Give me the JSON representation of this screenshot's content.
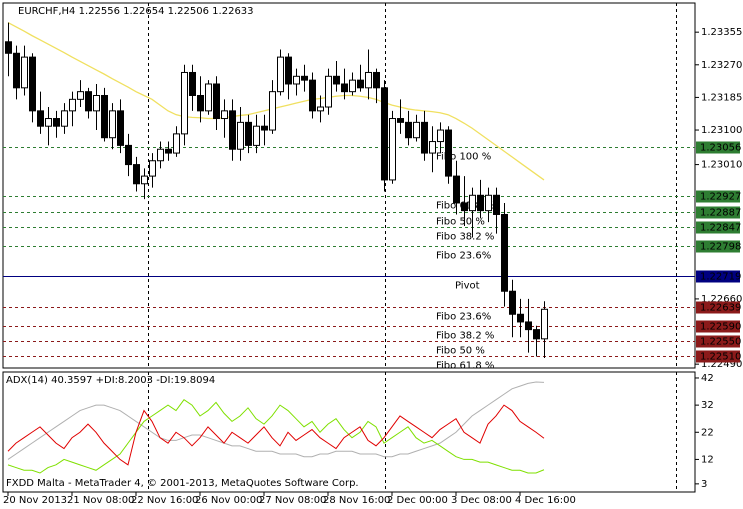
{
  "chart_data": [
    {
      "type": "candlestick",
      "title": "EURCHF,H4  1.22556 1.22654 1.22506 1.22633",
      "categories": [
        "20 Nov 2013",
        null,
        null,
        null,
        null,
        null,
        null,
        null,
        "21 Nov 08:00",
        null,
        null,
        null,
        null,
        null,
        null,
        null,
        "22 Nov 16:00",
        null,
        null,
        null,
        null,
        null,
        null,
        null,
        "26 Nov 00:00",
        null,
        null,
        null,
        null,
        null,
        null,
        null,
        "27 Nov 08:00",
        null,
        null,
        null,
        null,
        null,
        null,
        null,
        "28 Nov 16:00",
        null,
        null,
        null,
        null,
        null,
        null,
        null,
        "2 Dec 00:00",
        null,
        null,
        null,
        null,
        null,
        null,
        null,
        "3 Dec 08:00",
        null,
        null,
        null,
        null,
        null,
        null,
        null,
        "4 Dec 16:00",
        null,
        null,
        null
      ],
      "open": [
        1.2333,
        1.233,
        1.2321,
        1.2329,
        1.2315,
        1.2311,
        1.2313,
        1.2311,
        1.2315,
        1.2318,
        1.232,
        1.2315,
        1.2319,
        1.2308,
        1.2315,
        1.2306,
        1.2301,
        1.2296,
        1.2298,
        1.2302,
        1.2305,
        1.2304,
        1.2309,
        1.2325,
        1.2319,
        1.2315,
        1.2322,
        1.2313,
        1.2315,
        1.2305,
        1.2312,
        1.2306,
        1.2311,
        1.231,
        1.232,
        1.2329,
        1.2322,
        1.2324,
        1.2323,
        1.2315,
        1.2316,
        1.2324,
        1.2322,
        1.232,
        1.2323,
        1.2321,
        1.2325,
        1.2321,
        1.2297,
        1.2313,
        1.2312,
        1.2308,
        1.2312,
        1.2304,
        1.2307,
        1.231,
        1.2298,
        1.2291,
        1.2289,
        1.2293,
        1.2289,
        1.2293,
        1.2288,
        1.2268,
        1.2262,
        1.226,
        1.2258,
        1.22556
      ],
      "high": [
        1.2338,
        1.2332,
        1.2332,
        1.233,
        1.232,
        1.2316,
        1.2315,
        1.2317,
        1.232,
        1.2323,
        1.2321,
        1.2322,
        1.2321,
        1.2317,
        1.2318,
        1.2309,
        1.2303,
        1.23,
        1.2304,
        1.2307,
        1.2307,
        1.2311,
        1.2327,
        1.2327,
        1.2324,
        1.2323,
        1.2324,
        1.2318,
        1.2318,
        1.2316,
        1.2314,
        1.2314,
        1.2314,
        1.2323,
        1.2331,
        1.233,
        1.2326,
        1.2327,
        1.2325,
        1.2319,
        1.2326,
        1.2328,
        1.2326,
        1.2325,
        1.2327,
        1.2331,
        1.2326,
        1.2323,
        1.2315,
        1.2318,
        1.2315,
        1.2314,
        1.2315,
        1.2311,
        1.2312,
        1.2311,
        1.2302,
        1.2298,
        1.2295,
        1.2297,
        1.2295,
        1.2295,
        1.2291,
        1.2271,
        1.2266,
        1.2266,
        1.2259,
        1.22654
      ],
      "low": [
        1.2324,
        1.2318,
        1.2319,
        1.2312,
        1.2309,
        1.2306,
        1.2308,
        1.2309,
        1.2311,
        1.2316,
        1.2313,
        1.231,
        1.2307,
        1.2305,
        1.2304,
        1.2298,
        1.2294,
        1.2292,
        1.2295,
        1.23,
        1.2302,
        1.2303,
        1.2306,
        1.2315,
        1.2312,
        1.2314,
        1.231,
        1.2308,
        1.2302,
        1.2302,
        1.2304,
        1.2304,
        1.2306,
        1.2309,
        1.2319,
        1.2318,
        1.2319,
        1.232,
        1.2313,
        1.2312,
        1.2314,
        1.232,
        1.2318,
        1.2319,
        1.232,
        1.2318,
        1.2317,
        1.2294,
        1.2296,
        1.2309,
        1.2306,
        1.2307,
        1.2302,
        1.2299,
        1.2304,
        1.2296,
        1.2288,
        1.2285,
        1.2282,
        1.2287,
        1.2286,
        1.2283,
        1.2264,
        1.2256,
        1.2256,
        1.2252,
        1.2251,
        1.22506
      ],
      "close": [
        1.233,
        1.2321,
        1.2329,
        1.2315,
        1.2311,
        1.2313,
        1.2311,
        1.2315,
        1.2318,
        1.232,
        1.2315,
        1.2319,
        1.2308,
        1.2315,
        1.2306,
        1.2301,
        1.2296,
        1.2298,
        1.2302,
        1.2305,
        1.2304,
        1.2309,
        1.2325,
        1.2319,
        1.2315,
        1.2322,
        1.2313,
        1.2315,
        1.2305,
        1.2312,
        1.2306,
        1.2311,
        1.231,
        1.232,
        1.2329,
        1.2322,
        1.2324,
        1.2323,
        1.2315,
        1.2316,
        1.2324,
        1.2322,
        1.232,
        1.2323,
        1.2321,
        1.2325,
        1.2321,
        1.2297,
        1.2313,
        1.2312,
        1.2308,
        1.2312,
        1.2304,
        1.2307,
        1.231,
        1.2298,
        1.2291,
        1.2289,
        1.2293,
        1.2289,
        1.2293,
        1.2288,
        1.2268,
        1.2262,
        1.226,
        1.2258,
        1.22556,
        1.22633
      ],
      "up_color": "#ffffff",
      "down_color": "#000000",
      "color": "#000000",
      "ma": {
        "color": "#f0e060",
        "values": [
          1.2338,
          1.23369,
          1.23358,
          1.23346,
          1.23335,
          1.23324,
          1.23313,
          1.23302,
          1.2329,
          1.23279,
          1.23268,
          1.23257,
          1.23246,
          1.23234,
          1.23223,
          1.23212,
          1.232,
          1.2319,
          1.2318,
          1.23165,
          1.2315,
          1.2314,
          1.23135,
          1.23133,
          1.23132,
          1.2313,
          1.2313,
          1.23132,
          1.23135,
          1.23138,
          1.2314,
          1.23145,
          1.2315,
          1.23155,
          1.2316,
          1.23165,
          1.2317,
          1.23175,
          1.2318,
          1.23182,
          1.23185,
          1.23188,
          1.2319,
          1.2319,
          1.23188,
          1.23185,
          1.2318,
          1.23172,
          1.23165,
          1.2316,
          1.23155,
          1.23152,
          1.2315,
          1.23148,
          1.23145,
          1.2314,
          1.2313,
          1.23118,
          1.23105,
          1.2309,
          1.23075,
          1.2306,
          1.23045,
          1.2303,
          1.23015,
          1.23,
          1.22985,
          1.2297
        ]
      },
      "levels": [
        {
          "text": "Fibo 100 %",
          "value": 1.23056,
          "color": "#2e7d32",
          "style": "dashed"
        },
        {
          "text": "Fibo 61.8 %",
          "value": 1.22927,
          "color": "#2e7d32",
          "style": "dashed"
        },
        {
          "text": "Fibo 50 %",
          "value": 1.22887,
          "color": "#2e7d32",
          "style": "dashed"
        },
        {
          "text": "Fibo 38.2 %",
          "value": 1.22847,
          "color": "#2e7d32",
          "style": "dashed"
        },
        {
          "text": "Fibo 23.6%",
          "value": 1.22798,
          "color": "#2e7d32",
          "style": "dashed"
        },
        {
          "text": "Pivot",
          "value": 1.22719,
          "color": "#000080",
          "style": "solid"
        },
        {
          "text": "Fibo 23.6%",
          "value": 1.22639,
          "color": "#8b1a1a",
          "style": "dashed"
        },
        {
          "text": "Fibo 38.2 %",
          "value": 1.2259,
          "value_label": "1.22590",
          "color": "#8b1a1a",
          "style": "dashed"
        },
        {
          "text": "Fibo 50 %",
          "value": 1.2255,
          "value_label": "1.22550",
          "color": "#8b1a1a",
          "style": "dashed"
        },
        {
          "text": "Fibo 61.8 %",
          "value": 1.2251,
          "value_label": "1.22510",
          "color": "#8b1a1a",
          "style": "dashed"
        }
      ],
      "ylim": [
        1.2248,
        1.23431
      ],
      "yticks": [
        1.23355,
        {
          "value": 1.2327,
          "label": "1.23270"
        },
        1.23185,
        {
          "value": 1.231,
          "label": "1.23100"
        },
        {
          "value": 1.2301,
          "label": "1.23010"
        },
        {
          "value": 1.2266,
          "label": "1.22660"
        },
        {
          "value": 1.2249,
          "label": "1.22490"
        }
      ]
    },
    {
      "type": "line",
      "title": "ADX(14) 40.3597 +DI:8.2003 -DI:19.8094",
      "series": [
        {
          "color": "#b0b0b0",
          "values": [
            12,
            14,
            16,
            18,
            20,
            22,
            24,
            26,
            28,
            30,
            31,
            32,
            32,
            31,
            30,
            28,
            26,
            24,
            22,
            20,
            19,
            19,
            20,
            21,
            21,
            20,
            19,
            18,
            17,
            17,
            16,
            15,
            15,
            15,
            14,
            14,
            14,
            13,
            13,
            14,
            14,
            15,
            15,
            15,
            14,
            14,
            14,
            13,
            13,
            14,
            14,
            15,
            16,
            17,
            18,
            20,
            22,
            25,
            28,
            30,
            32,
            34,
            36,
            38,
            39,
            40,
            40.5,
            40.3597
          ]
        },
        {
          "color": "#7fe000",
          "values": [
            10,
            9,
            8,
            8,
            7,
            9,
            10,
            12,
            11,
            10,
            9,
            8,
            10,
            12,
            14,
            18,
            22,
            26,
            28,
            30,
            32,
            30,
            34,
            32,
            28,
            30,
            33,
            29,
            26,
            28,
            31,
            27,
            25,
            28,
            32,
            30,
            27,
            24,
            26,
            22,
            25,
            27,
            23,
            20,
            22,
            26,
            24,
            18,
            20,
            22,
            24,
            20,
            18,
            19,
            17,
            15,
            13,
            12,
            12,
            11,
            11,
            10,
            9,
            8,
            8,
            7,
            7,
            8.2003
          ]
        },
        {
          "color": "#e00000",
          "values": [
            15,
            18,
            20,
            22,
            24,
            21,
            18,
            16,
            20,
            22,
            25,
            22,
            18,
            15,
            12,
            10,
            22,
            30,
            26,
            20,
            18,
            22,
            20,
            17,
            20,
            24,
            21,
            18,
            22,
            20,
            18,
            21,
            24,
            20,
            17,
            22,
            19,
            21,
            23,
            20,
            18,
            16,
            20,
            22,
            24,
            19,
            17,
            20,
            24,
            28,
            26,
            24,
            22,
            20,
            23,
            25,
            27,
            22,
            20,
            18,
            25,
            28,
            32,
            30,
            26,
            24,
            22,
            19.8094
          ]
        }
      ],
      "ylim": [
        0,
        44.2
      ],
      "yticks": [
        42,
        32,
        22,
        12,
        3
      ]
    }
  ],
  "footer": "FXDD Malta - MetaTrader 4, © 2001-2013, MetaQuotes Software Corp."
}
